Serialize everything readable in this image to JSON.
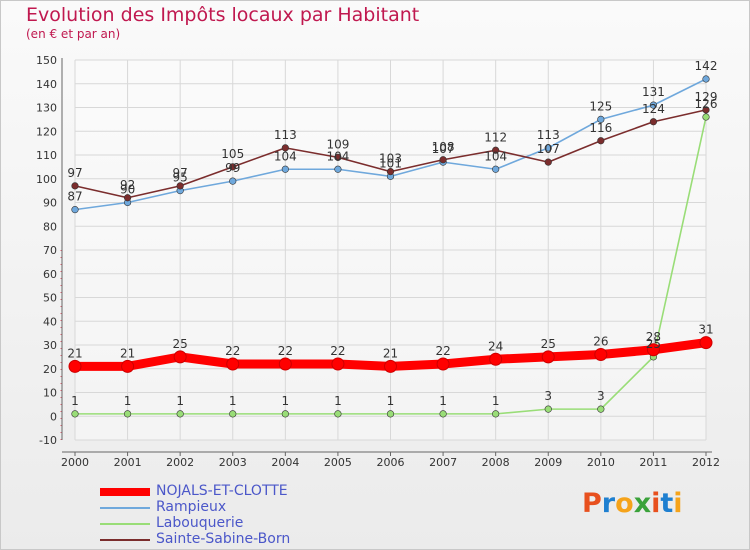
{
  "title": "Evolution des Impôts locaux par Habitant",
  "subtitle": "(en € et par an)",
  "logo": {
    "text": "Proxiti",
    "letters": [
      "P",
      "r",
      "o",
      "x",
      "i",
      "t",
      "i"
    ],
    "colors": [
      "#e8501e",
      "#1e7fd0",
      "#f5a31a",
      "#3aa23a",
      "#e8501e",
      "#1e7fd0",
      "#f5a31a"
    ]
  },
  "chart_data": {
    "type": "line",
    "title": "Evolution des Impôts locaux par Habitant",
    "subtitle": "(en € et par an)",
    "xlabel": "",
    "ylabel": "",
    "x": [
      "2000",
      "2001",
      "2002",
      "2003",
      "2004",
      "2005",
      "2006",
      "2007",
      "2008",
      "2009",
      "2010",
      "2011",
      "2012"
    ],
    "ylim": [
      -10,
      150
    ],
    "yticks": [
      -10,
      0,
      10,
      20,
      30,
      40,
      50,
      60,
      70,
      80,
      90,
      100,
      110,
      120,
      130,
      140,
      150
    ],
    "grid": true,
    "legend_position": "bottom-left",
    "series": [
      {
        "name": "NOJALS-ET-CLOTTE",
        "color": "#ff0000",
        "values": [
          21,
          21,
          25,
          22,
          22,
          22,
          21,
          22,
          24,
          25,
          26,
          28,
          31
        ],
        "labels": [
          "21",
          "21",
          "25",
          "22",
          "22",
          "22",
          "21",
          "22",
          "24",
          "25",
          "26",
          "28",
          "31"
        ]
      },
      {
        "name": "Rampieux",
        "color": "#6fa8dc",
        "values": [
          87,
          90,
          95,
          99,
          104,
          104,
          101,
          107,
          104,
          113,
          125,
          131,
          142
        ],
        "labels": [
          "87",
          "90",
          "95",
          "99",
          "104",
          "104",
          "101",
          "107",
          "104",
          "113",
          "125",
          "131",
          "142"
        ]
      },
      {
        "name": "Labouquerie",
        "color": "#99dd77",
        "values": [
          1,
          1,
          1,
          1,
          1,
          1,
          1,
          1,
          1,
          3,
          3,
          25,
          126
        ],
        "labels": [
          "1",
          "1",
          "1",
          "1",
          "1",
          "1",
          "1",
          "1",
          "1",
          "3",
          "3",
          "25",
          "126"
        ]
      },
      {
        "name": "Sainte-Sabine-Born",
        "color": "#7b2d2d",
        "values": [
          97,
          92,
          97,
          105,
          113,
          109,
          103,
          108,
          112,
          107,
          116,
          124,
          129
        ],
        "labels": [
          "97",
          "92",
          "97",
          "105",
          "113",
          "109",
          "103",
          "108",
          "112",
          "107",
          "116",
          "124",
          "129"
        ]
      }
    ]
  }
}
